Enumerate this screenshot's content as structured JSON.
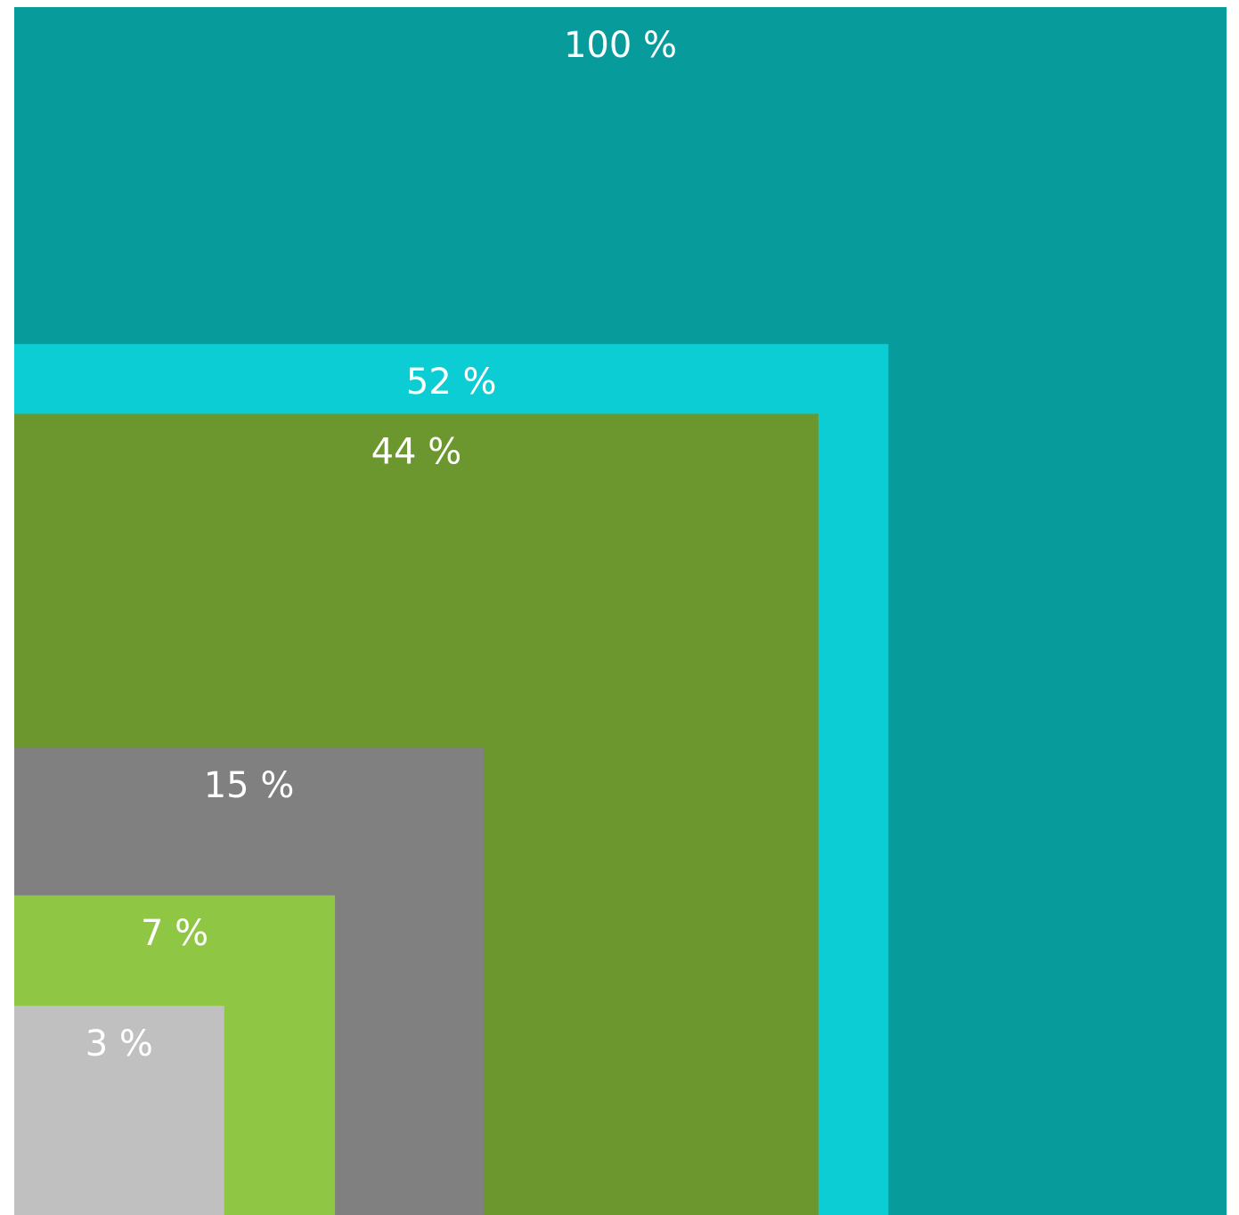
{
  "chart_data": {
    "type": "nested-area",
    "values": [
      100,
      52,
      44,
      15,
      7,
      3
    ],
    "value_labels": [
      "100 %",
      "52 %",
      "44 %",
      "15 %",
      "7 %",
      "3 %"
    ],
    "colors": [
      "#079b9c",
      "#0bcdd3",
      "#6c972f",
      "#808080",
      "#8fc644",
      "#c0c0c0"
    ]
  }
}
